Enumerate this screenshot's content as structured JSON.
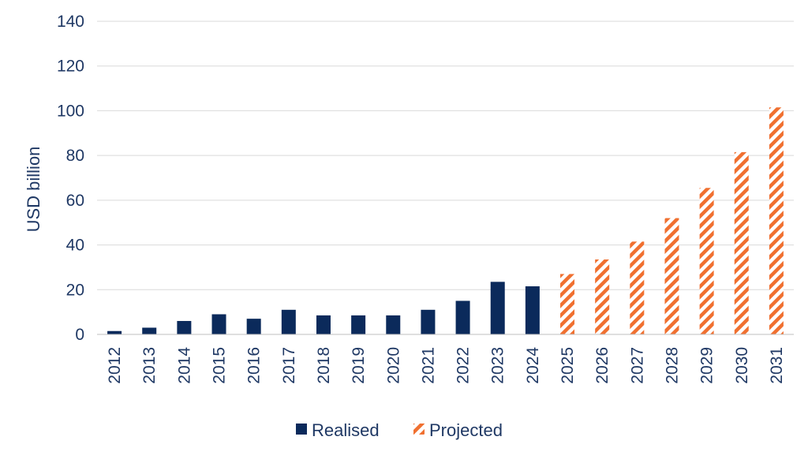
{
  "chart_data": {
    "type": "bar",
    "title": "",
    "xlabel": "",
    "ylabel": "USD billion",
    "ylim": [
      0,
      140
    ],
    "yticks": [
      0,
      20,
      40,
      60,
      80,
      100,
      120,
      140
    ],
    "grid": true,
    "legend_position": "bottom",
    "categories": [
      "2012",
      "2013",
      "2014",
      "2015",
      "2016",
      "2017",
      "2018",
      "2019",
      "2020",
      "2021",
      "2022",
      "2023",
      "2024",
      "2025",
      "2026",
      "2027",
      "2028",
      "2029",
      "2030",
      "2031"
    ],
    "series": [
      {
        "name": "Realised",
        "color": "#0b2a5b",
        "pattern": "solid",
        "values": [
          1.5,
          3,
          6,
          9,
          7,
          11,
          8.5,
          8.5,
          8.5,
          11,
          15,
          23.5,
          21.5,
          null,
          null,
          null,
          null,
          null,
          null,
          null
        ]
      },
      {
        "name": "Projected",
        "color": "#f07030",
        "pattern": "hatched",
        "values": [
          null,
          null,
          null,
          null,
          null,
          null,
          null,
          null,
          null,
          null,
          null,
          null,
          null,
          27,
          33.5,
          41.5,
          52,
          65.5,
          81.5,
          101.5
        ]
      }
    ]
  }
}
